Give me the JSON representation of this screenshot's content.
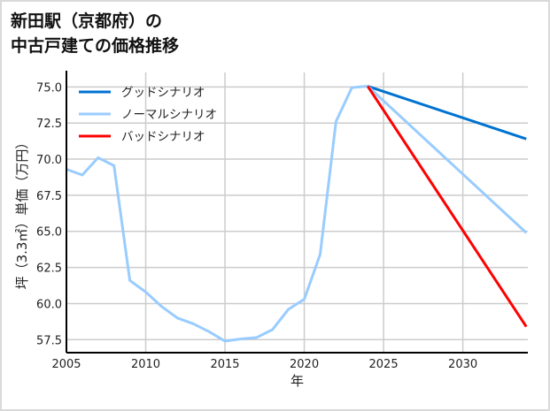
{
  "chart_data": {
    "type": "line",
    "title_lines": [
      "新田駅（京都府）の",
      "中古戸建ての価格推移"
    ],
    "xlabel": "年",
    "ylabel": "坪（3.3㎡）単価（万円）",
    "xlim": [
      2005,
      2034.1
    ],
    "ylim": [
      56.6,
      76.0
    ],
    "xticks": [
      "2005",
      "2010",
      "2015",
      "2020",
      "2025",
      "2030"
    ],
    "yticks": [
      "57.5",
      "60.0",
      "62.5",
      "65.0",
      "67.5",
      "70.0",
      "72.5",
      "75.0"
    ],
    "grid": true,
    "legend_position": "top-left",
    "series": [
      {
        "name": "グッドシナリオ",
        "color": "#0072d0",
        "x": [
          2024,
          2034
        ],
        "y": [
          75.05,
          71.4
        ]
      },
      {
        "name": "ノーマルシナリオ",
        "color": "#99ccff",
        "x": [
          2005,
          2006,
          2007,
          2008,
          2009,
          2010,
          2011,
          2012,
          2013,
          2014,
          2015,
          2016,
          2017,
          2018,
          2019,
          2020,
          2021,
          2022,
          2023,
          2024,
          2034
        ],
        "y": [
          69.3,
          68.9,
          70.1,
          69.55,
          61.6,
          60.8,
          59.8,
          59.0,
          58.6,
          58.05,
          57.4,
          57.55,
          57.65,
          58.2,
          59.6,
          60.3,
          63.4,
          72.6,
          74.95,
          75.05,
          64.9
        ]
      },
      {
        "name": "バッドシナリオ",
        "color": "#ff0000",
        "x": [
          2024,
          2034
        ],
        "y": [
          75.05,
          58.4
        ]
      }
    ]
  }
}
